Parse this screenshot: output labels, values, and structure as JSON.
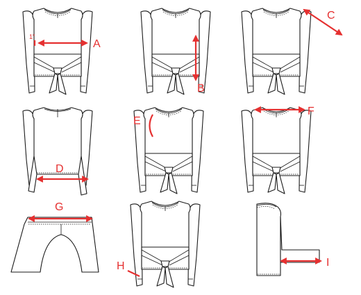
{
  "labels": {
    "A": "A",
    "B": "B",
    "C": "C",
    "D": "D",
    "E": "E",
    "F": "F",
    "G": "G",
    "H": "H",
    "I": "I",
    "a_note": "1\""
  },
  "colors": {
    "measure": "#e53030",
    "ink": "#1a1a1a"
  }
}
